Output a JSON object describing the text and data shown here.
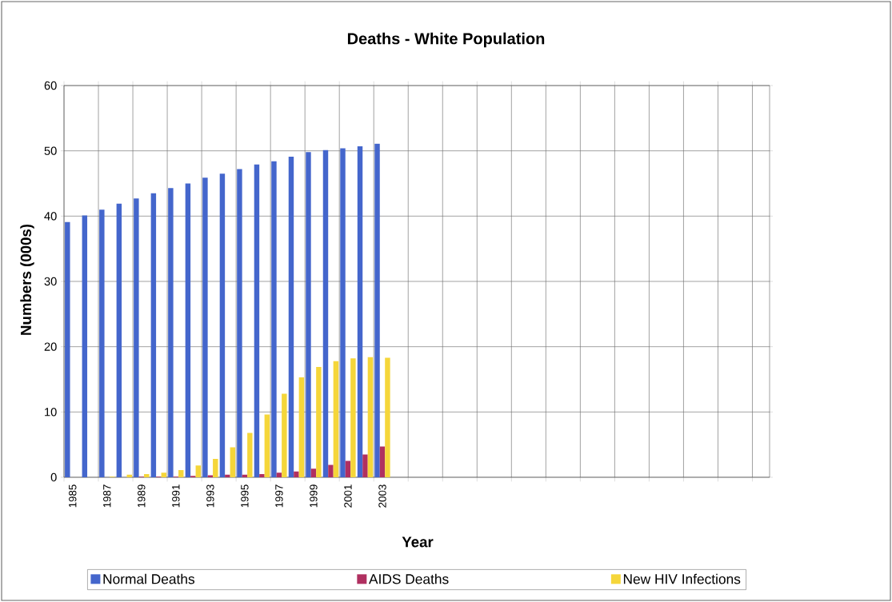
{
  "chart_data": {
    "type": "bar",
    "title": "Deaths - White Population",
    "xlabel": "Year",
    "ylabel": "Numbers (000s)",
    "categories": [
      "1985",
      null,
      "1987",
      null,
      "1989",
      null,
      "1991",
      null,
      "1993",
      null,
      "1995",
      null,
      "1997",
      null,
      "1999",
      null,
      "2001",
      null,
      "2003",
      null,
      null,
      null,
      null,
      null,
      null,
      null,
      null,
      null,
      null,
      null,
      null,
      null,
      null,
      null,
      null,
      null,
      null,
      null,
      null,
      null,
      null
    ],
    "series": [
      {
        "name": "Normal Deaths",
        "color": "#4466cc",
        "values": [
          39.1,
          40.1,
          41.0,
          41.9,
          42.7,
          43.5,
          44.3,
          45.0,
          45.9,
          46.5,
          47.2,
          47.9,
          48.4,
          49.1,
          49.8,
          50.1,
          50.4,
          50.7,
          51.1,
          null,
          null,
          null,
          null,
          null,
          null,
          null,
          null,
          null,
          null,
          null,
          null,
          null,
          null,
          null,
          null,
          null,
          null,
          null,
          null,
          null,
          null
        ]
      },
      {
        "name": "AIDS Deaths",
        "color": "#b03060",
        "values": [
          0,
          0,
          0,
          0,
          0.1,
          0.1,
          0.1,
          0.2,
          0.3,
          0.4,
          0.4,
          0.5,
          0.7,
          0.9,
          1.3,
          1.9,
          2.5,
          3.5,
          4.7,
          null,
          null,
          null,
          null,
          null,
          null,
          null,
          null,
          null,
          null,
          null,
          null,
          null,
          null,
          null,
          null,
          null,
          null,
          null,
          null,
          null,
          null
        ]
      },
      {
        "name": "New HIV Infections",
        "color": "#f5d63a",
        "values": [
          0,
          0,
          0.1,
          0.4,
          0.5,
          0.7,
          1.1,
          1.8,
          2.8,
          4.6,
          6.8,
          9.6,
          12.8,
          15.3,
          16.9,
          17.8,
          18.2,
          18.4,
          18.3,
          null,
          null,
          null,
          null,
          null,
          null,
          null,
          null,
          null,
          null,
          null,
          null,
          null,
          null,
          null,
          null,
          null,
          null,
          null,
          null,
          null,
          null
        ]
      }
    ],
    "ylim": [
      0,
      60
    ],
    "yticks": [
      0,
      10,
      20,
      30,
      40,
      50,
      60
    ],
    "grid": true,
    "legend": "bottom"
  }
}
